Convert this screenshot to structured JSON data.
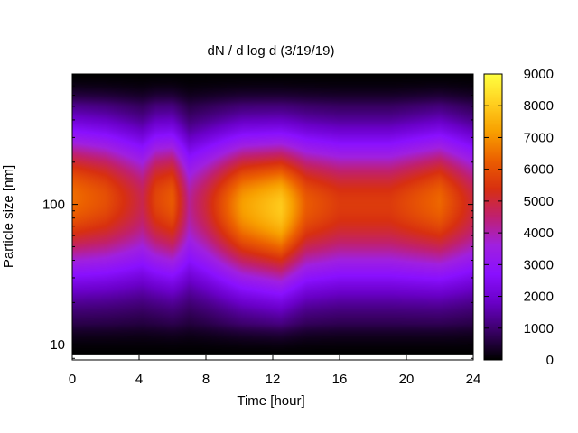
{
  "chart_data": {
    "type": "heatmap",
    "title": "dN / d log d (3/19/19)",
    "xlabel": "Time [hour]",
    "ylabel": "Particle size [nm]",
    "x_range": [
      0,
      24
    ],
    "x_ticks": [
      0,
      4,
      8,
      12,
      16,
      20,
      24
    ],
    "x_tick_labels": [
      "0",
      "4",
      "8",
      "12",
      "16",
      "20",
      "24"
    ],
    "y_scale": "log",
    "y_range_nm": [
      7.8,
      850
    ],
    "y_data_range_nm": [
      8.5,
      850
    ],
    "y_ticks": [
      10,
      100
    ],
    "y_tick_labels": [
      "10",
      "100"
    ],
    "colorbar": {
      "range": [
        0,
        9000
      ],
      "ticks": [
        0,
        1000,
        2000,
        3000,
        4000,
        5000,
        6000,
        7000,
        8000,
        9000
      ],
      "tick_labels": [
        "0",
        "1000",
        "2000",
        "3000",
        "4000",
        "5000",
        "6000",
        "7000",
        "8000",
        "9000"
      ],
      "palette": [
        "#000000",
        "#3a0066",
        "#6a00c8",
        "#8a10ff",
        "#a020e0",
        "#c02070",
        "#d83010",
        "#ec6000",
        "#f8a000",
        "#ffd020",
        "#ffff40"
      ]
    },
    "mode_peaks": [
      {
        "hour": 0.0,
        "diameter_nm": 112,
        "value": 6500
      },
      {
        "hour": 2.0,
        "diameter_nm": 110,
        "value": 6000
      },
      {
        "hour": 4.2,
        "diameter_nm": 105,
        "value": 4800
      },
      {
        "hour": 5.0,
        "diameter_nm": 110,
        "value": 5800
      },
      {
        "hour": 6.0,
        "diameter_nm": 108,
        "value": 6200
      },
      {
        "hour": 7.0,
        "diameter_nm": 100,
        "value": 4200
      },
      {
        "hour": 8.0,
        "diameter_nm": 100,
        "value": 5000
      },
      {
        "hour": 10.2,
        "diameter_nm": 98,
        "value": 7200
      },
      {
        "hour": 12.5,
        "diameter_nm": 95,
        "value": 8000
      },
      {
        "hour": 14.0,
        "diameter_nm": 100,
        "value": 6200
      },
      {
        "hour": 16.0,
        "diameter_nm": 100,
        "value": 5600
      },
      {
        "hour": 19.0,
        "diameter_nm": 100,
        "value": 5600
      },
      {
        "hour": 22.0,
        "diameter_nm": 105,
        "value": 6400
      },
      {
        "hour": 24.0,
        "diameter_nm": 100,
        "value": 5000
      }
    ]
  }
}
